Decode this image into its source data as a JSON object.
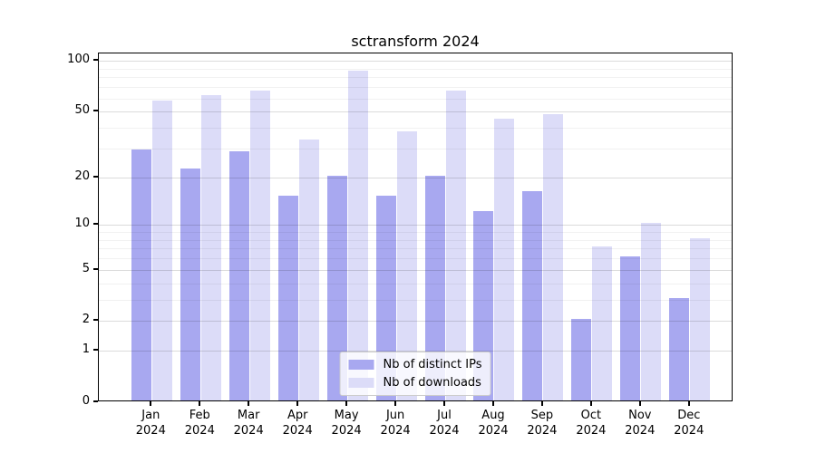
{
  "figure": {
    "title": "sctransform 2024"
  },
  "chart_data": {
    "type": "bar",
    "title": "sctransform 2024",
    "categories": [
      "Jan 2024",
      "Feb 2024",
      "Mar 2024",
      "Apr 2024",
      "May 2024",
      "Jun 2024",
      "Jul 2024",
      "Aug 2024",
      "Sep 2024",
      "Oct 2024",
      "Nov 2024",
      "Dec 2024"
    ],
    "series": [
      {
        "name": "Nb of distinct IPs",
        "color": "#a8a8f0",
        "values": [
          29,
          22,
          28,
          15,
          20,
          15,
          20,
          12,
          16,
          2,
          6,
          3
        ]
      },
      {
        "name": "Nb of downloads",
        "color": "#dcdcf8",
        "values": [
          57,
          61,
          65,
          33,
          86,
          37,
          65,
          44,
          47,
          7,
          10,
          8
        ]
      }
    ],
    "xlabel": "",
    "ylabel": "",
    "yscale": "log1p",
    "ylim": [
      0,
      110
    ],
    "yticks_labeled": [
      0,
      1,
      2,
      5,
      10,
      20,
      50,
      100
    ],
    "yticks_minor": [
      3,
      4,
      6,
      7,
      8,
      9,
      30,
      40,
      60,
      70,
      80,
      90
    ],
    "grid": "horizontal, drawn over bars",
    "legend_position": "lower center",
    "axis_color": "#000000"
  }
}
